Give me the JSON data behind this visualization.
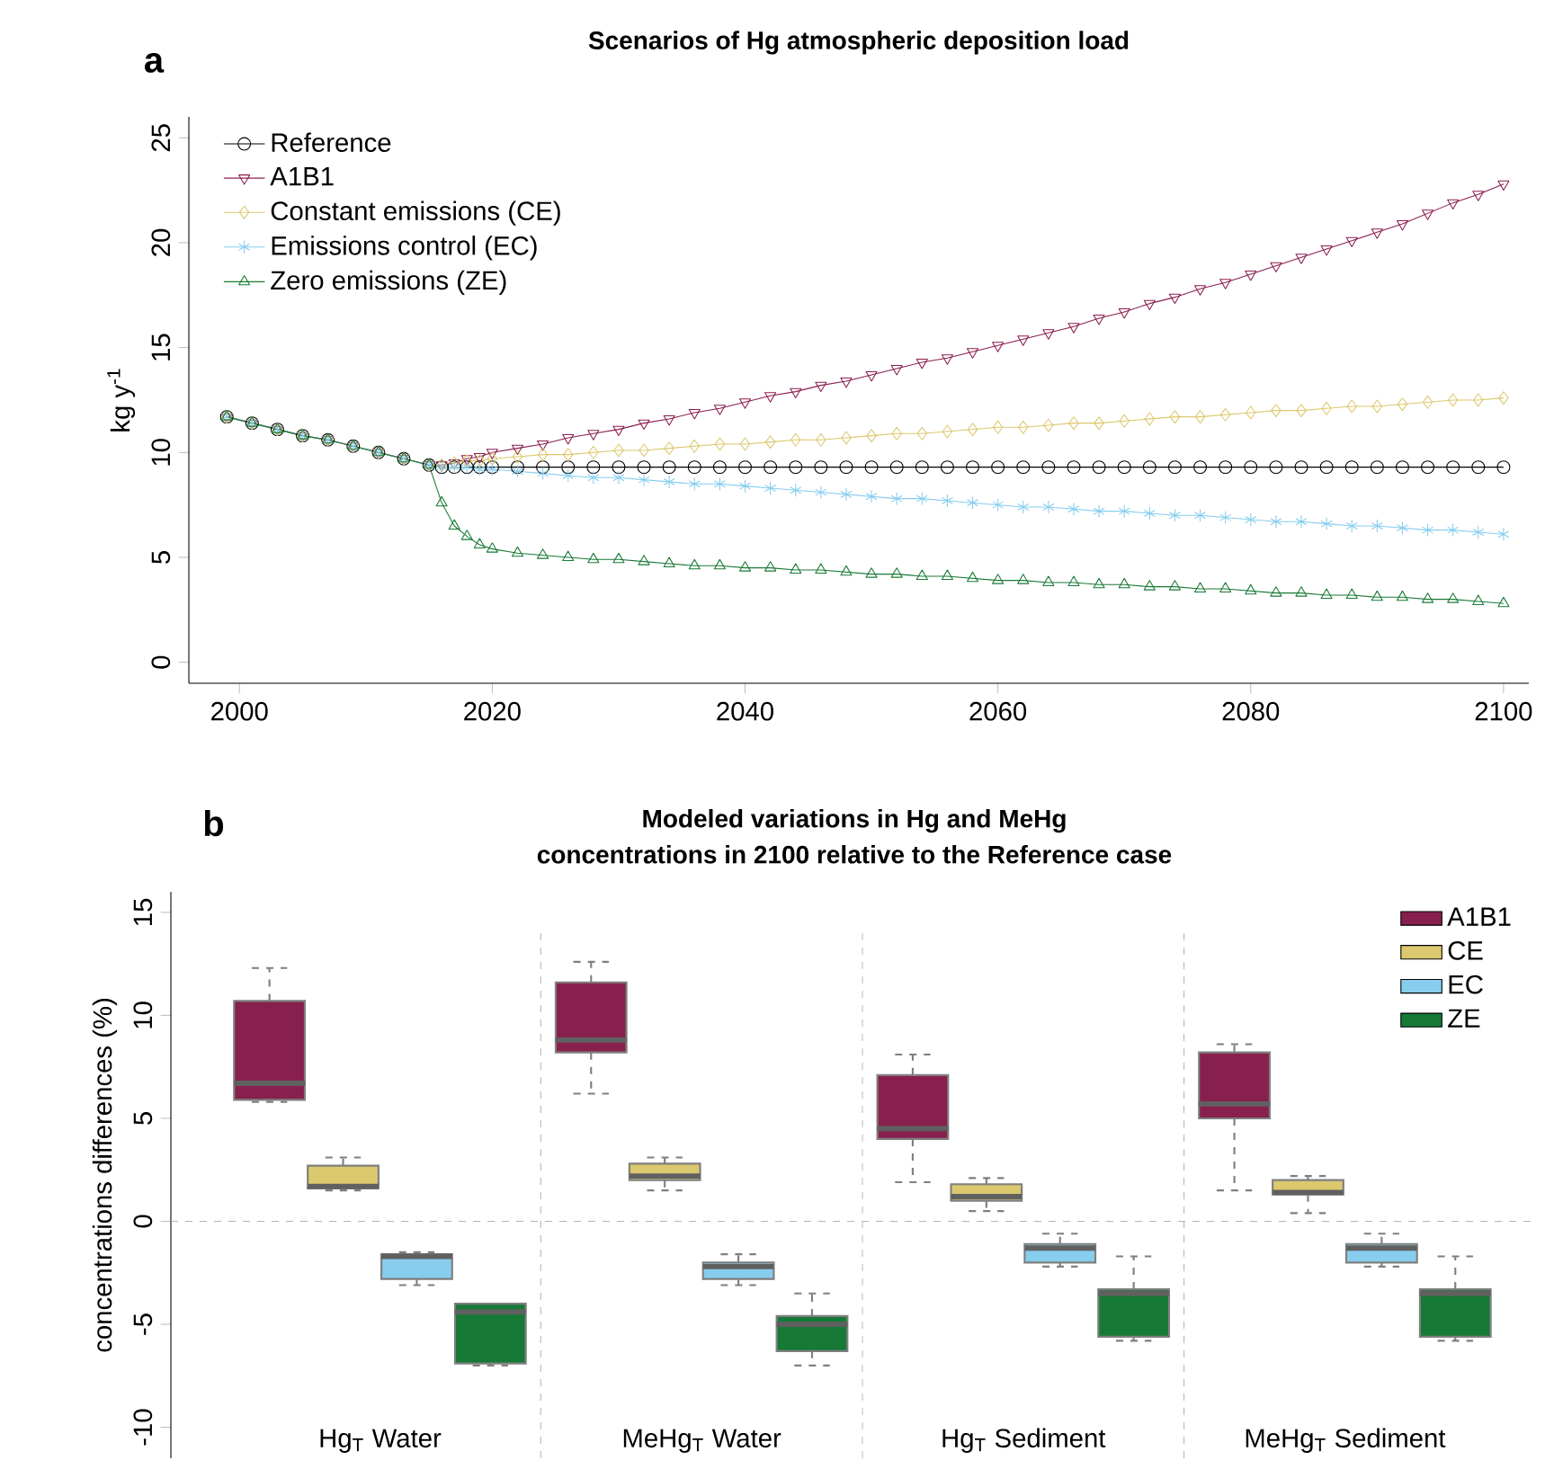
{
  "chart_data": [
    {
      "type": "line",
      "title": "Scenarios of Hg atmospheric deposition load",
      "ylabel": "kg y$^{-1}$",
      "annotations": [
        "a"
      ],
      "x": [
        1999,
        2001,
        2003,
        2005,
        2007,
        2009,
        2011,
        2013,
        2015,
        2016,
        2017,
        2018,
        2019,
        2020,
        2022,
        2024,
        2026,
        2028,
        2030,
        2032,
        2034,
        2036,
        2038,
        2040,
        2042,
        2044,
        2046,
        2048,
        2050,
        2052,
        2054,
        2056,
        2058,
        2060,
        2062,
        2064,
        2066,
        2068,
        2070,
        2072,
        2074,
        2076,
        2078,
        2080,
        2082,
        2084,
        2086,
        2088,
        2090,
        2092,
        2094,
        2096,
        2098,
        2100
      ],
      "xlim": [
        1996,
        2102
      ],
      "xticks": [
        2000,
        2020,
        2040,
        2060,
        2080,
        2100
      ],
      "ylim": [
        -1,
        26
      ],
      "yticks": [
        0,
        5,
        10,
        15,
        20,
        25
      ],
      "legend": "top left",
      "line_style": "solid",
      "series": [
        {
          "name": "Reference",
          "color": "#000000",
          "marker": "circle",
          "values": [
            11.7,
            11.4,
            11.1,
            10.8,
            10.6,
            10.3,
            10.0,
            9.7,
            9.4,
            9.3,
            9.3,
            9.3,
            9.3,
            9.3,
            9.3,
            9.3,
            9.3,
            9.3,
            9.3,
            9.3,
            9.3,
            9.3,
            9.3,
            9.3,
            9.3,
            9.3,
            9.3,
            9.3,
            9.3,
            9.3,
            9.3,
            9.3,
            9.3,
            9.3,
            9.3,
            9.3,
            9.3,
            9.3,
            9.3,
            9.3,
            9.3,
            9.3,
            9.3,
            9.3,
            9.3,
            9.3,
            9.3,
            9.3,
            9.3,
            9.3,
            9.3,
            9.3,
            9.3,
            9.3
          ]
        },
        {
          "name": "A1B1",
          "color": "#8b1e50",
          "marker": "triangle_down",
          "values": [
            11.7,
            11.4,
            11.1,
            10.8,
            10.6,
            10.3,
            10.0,
            9.7,
            9.4,
            9.4,
            9.5,
            9.7,
            9.8,
            10.0,
            10.2,
            10.4,
            10.7,
            10.9,
            11.1,
            11.4,
            11.6,
            11.9,
            12.1,
            12.4,
            12.7,
            12.9,
            13.2,
            13.4,
            13.7,
            14.0,
            14.3,
            14.5,
            14.8,
            15.1,
            15.4,
            15.7,
            16.0,
            16.4,
            16.7,
            17.1,
            17.4,
            17.8,
            18.1,
            18.5,
            18.9,
            19.3,
            19.7,
            20.1,
            20.5,
            20.9,
            21.4,
            21.9,
            22.3,
            22.8
          ]
        },
        {
          "name": "Constant emissions (CE)",
          "color": "#dcc86e",
          "marker": "diamond",
          "values": [
            11.7,
            11.4,
            11.1,
            10.8,
            10.6,
            10.3,
            10.0,
            9.7,
            9.4,
            9.4,
            9.5,
            9.6,
            9.6,
            9.7,
            9.8,
            9.9,
            9.9,
            10.0,
            10.1,
            10.1,
            10.2,
            10.3,
            10.4,
            10.4,
            10.5,
            10.6,
            10.6,
            10.7,
            10.8,
            10.9,
            10.9,
            11.0,
            11.1,
            11.2,
            11.2,
            11.3,
            11.4,
            11.4,
            11.5,
            11.6,
            11.7,
            11.7,
            11.8,
            11.9,
            12.0,
            12.0,
            12.1,
            12.2,
            12.2,
            12.3,
            12.4,
            12.5,
            12.5,
            12.6
          ]
        },
        {
          "name": "Emissions control (EC)",
          "color": "#87cdee",
          "marker": "cross",
          "values": [
            11.7,
            11.4,
            11.1,
            10.8,
            10.6,
            10.3,
            10.0,
            9.7,
            9.4,
            9.3,
            9.3,
            9.3,
            9.2,
            9.2,
            9.1,
            9.0,
            8.9,
            8.8,
            8.8,
            8.7,
            8.6,
            8.5,
            8.5,
            8.4,
            8.3,
            8.2,
            8.1,
            8.0,
            7.9,
            7.8,
            7.8,
            7.7,
            7.6,
            7.5,
            7.4,
            7.4,
            7.3,
            7.2,
            7.2,
            7.1,
            7.0,
            7.0,
            6.9,
            6.8,
            6.7,
            6.7,
            6.6,
            6.5,
            6.5,
            6.4,
            6.3,
            6.3,
            6.2,
            6.1
          ]
        },
        {
          "name": "Zero emissions (ZE)",
          "color": "#1a7a36",
          "marker": "triangle",
          "values": [
            11.7,
            11.4,
            11.1,
            10.8,
            10.6,
            10.3,
            10.0,
            9.7,
            9.4,
            7.6,
            6.5,
            6.0,
            5.6,
            5.4,
            5.2,
            5.1,
            5.0,
            4.9,
            4.9,
            4.8,
            4.7,
            4.6,
            4.6,
            4.5,
            4.5,
            4.4,
            4.4,
            4.3,
            4.2,
            4.2,
            4.1,
            4.1,
            4.0,
            3.9,
            3.9,
            3.8,
            3.8,
            3.7,
            3.7,
            3.6,
            3.6,
            3.5,
            3.5,
            3.4,
            3.3,
            3.3,
            3.2,
            3.2,
            3.1,
            3.1,
            3.0,
            3.0,
            2.9,
            2.8
          ]
        }
      ]
    },
    {
      "type": "box",
      "title": "Modeled variations in Hg and MeHg",
      "subtitle": "concentrations in 2100 relative to the Reference case",
      "ylabel": "concentrations differences (%)",
      "annotations": [
        "b"
      ],
      "categories": [
        "Hg$_{T}$ Water",
        "MeHg$_{T}$ Water",
        "Hg$_{T}$ Sediment",
        "MeHg$_{T}$ Sediment"
      ],
      "ylim": [
        -11.5,
        16
      ],
      "yticks": [
        -10,
        -5,
        0,
        5,
        10,
        15
      ],
      "legend": "top right",
      "ref_lines": [
        {
          "axis": "y",
          "value": 0,
          "color": "#b4b4b4",
          "line_style": "dashed"
        }
      ],
      "series": [
        {
          "name": "A1B1",
          "color": "#88204f",
          "boxes": [
            {
              "low": 5.8,
              "q1": 5.9,
              "median": 6.7,
              "q3": 10.7,
              "high": 12.3
            },
            {
              "low": 6.2,
              "q1": 8.2,
              "median": 8.8,
              "q3": 11.6,
              "high": 12.6
            },
            {
              "low": 1.9,
              "q1": 4.0,
              "median": 4.5,
              "q3": 7.1,
              "high": 8.1
            },
            {
              "low": 1.5,
              "q1": 5.0,
              "median": 5.7,
              "q3": 8.2,
              "high": 8.6
            }
          ]
        },
        {
          "name": "CE",
          "color": "#dcc86e",
          "boxes": [
            {
              "low": 1.5,
              "q1": 1.6,
              "median": 1.7,
              "q3": 2.7,
              "high": 3.1
            },
            {
              "low": 1.5,
              "q1": 2.0,
              "median": 2.2,
              "q3": 2.8,
              "high": 3.1
            },
            {
              "low": 0.5,
              "q1": 1.0,
              "median": 1.2,
              "q3": 1.8,
              "high": 2.1
            },
            {
              "low": 0.4,
              "q1": 1.3,
              "median": 1.4,
              "q3": 2.0,
              "high": 2.2
            }
          ]
        },
        {
          "name": "EC",
          "color": "#87cdee",
          "boxes": [
            {
              "low": -3.1,
              "q1": -2.8,
              "median": -1.7,
              "q3": -1.6,
              "high": -1.5
            },
            {
              "low": -3.1,
              "q1": -2.8,
              "median": -2.2,
              "q3": -2.0,
              "high": -1.6
            },
            {
              "low": -2.2,
              "q1": -2.0,
              "median": -1.3,
              "q3": -1.1,
              "high": -0.6
            },
            {
              "low": -2.2,
              "q1": -2.0,
              "median": -1.3,
              "q3": -1.1,
              "high": -0.6
            }
          ]
        },
        {
          "name": "ZE",
          "color": "#167a36",
          "boxes": [
            {
              "low": -7.0,
              "q1": -6.9,
              "median": -4.4,
              "q3": -4.0,
              "high": -4.0
            },
            {
              "low": -7.0,
              "q1": -6.3,
              "median": -5.0,
              "q3": -4.6,
              "high": -3.5
            },
            {
              "low": -5.8,
              "q1": -5.6,
              "median": -3.5,
              "q3": -3.3,
              "high": -1.7
            },
            {
              "low": -5.8,
              "q1": -5.6,
              "median": -3.5,
              "q3": -3.3,
              "high": -1.7
            }
          ]
        }
      ]
    }
  ]
}
